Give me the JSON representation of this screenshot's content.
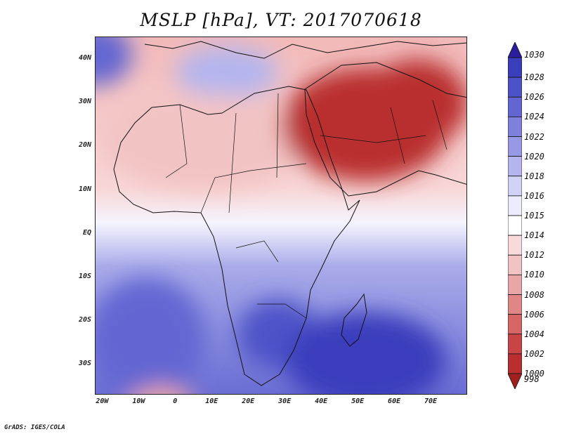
{
  "title": "MSLP [hPa], VT: 2017070618",
  "credit": "GrADS: IGES/COLA",
  "map": {
    "region": "Africa, Arabian Peninsula and Indian Ocean",
    "lat_labels": [
      "40N",
      "30N",
      "20N",
      "10N",
      "EQ",
      "10S",
      "20S",
      "30S"
    ],
    "lat_values": [
      40,
      30,
      20,
      10,
      0,
      -10,
      -20,
      -30
    ],
    "lon_labels": [
      "20W",
      "10W",
      "0",
      "10E",
      "20E",
      "30E",
      "40E",
      "50E",
      "60E",
      "70E"
    ],
    "lon_values": [
      -20,
      -10,
      0,
      10,
      20,
      30,
      40,
      50,
      60,
      70
    ],
    "lon_range": [
      -22,
      80
    ],
    "lat_range": [
      -37,
      45
    ],
    "pressure_regions": [
      {
        "name": "azores-high",
        "lon": -22,
        "lat": 41,
        "rx": 10,
        "ry": 7,
        "value": 1024
      },
      {
        "name": "mediterranean-high",
        "lon": 14,
        "lat": 37,
        "rx": 14,
        "ry": 6,
        "value": 1017
      },
      {
        "name": "sahara-low",
        "lon": 8,
        "lat": 21,
        "rx": 28,
        "ry": 11,
        "value": 1009
      },
      {
        "name": "arabian-heat-low",
        "lon": 52,
        "lat": 25,
        "rx": 23,
        "ry": 13,
        "value": 999
      },
      {
        "name": "persian-low",
        "lon": 66,
        "lat": 30,
        "rx": 14,
        "ry": 10,
        "value": 1000
      },
      {
        "name": "south-atlantic-high",
        "lon": -8,
        "lat": -24,
        "rx": 16,
        "ry": 14,
        "value": 1024
      },
      {
        "name": "southern-africa-high",
        "lon": 28,
        "lat": -23,
        "rx": 11,
        "ry": 8,
        "value": 1025
      },
      {
        "name": "mascarene-high",
        "lon": 52,
        "lat": -29,
        "rx": 22,
        "ry": 11,
        "value": 1028
      },
      {
        "name": "southern-ocean-low",
        "lon": -4,
        "lat": -41,
        "rx": 10,
        "ry": 6,
        "value": 1008
      }
    ]
  },
  "colorbar": {
    "labels": [
      "1030",
      "1028",
      "1026",
      "1024",
      "1022",
      "1020",
      "1018",
      "1016",
      "1015",
      "1014",
      "1012",
      "1010",
      "1008",
      "1006",
      "1004",
      "1002",
      "1000",
      "998"
    ],
    "top_arrow_color": "#2a1e9e",
    "bottom_arrow_color": "#a1201e",
    "colors": [
      "#2a2cae",
      "#3a3dbc",
      "#4e52c8",
      "#6366d2",
      "#7d80dc",
      "#9899e6",
      "#b4b5ee",
      "#d1d2f6",
      "#ececfd",
      "#ffffff",
      "#f8dada",
      "#f2c3c3",
      "#e9a6a6",
      "#e08686",
      "#d66565",
      "#c94545",
      "#b92f2f",
      "#a1201e"
    ]
  }
}
